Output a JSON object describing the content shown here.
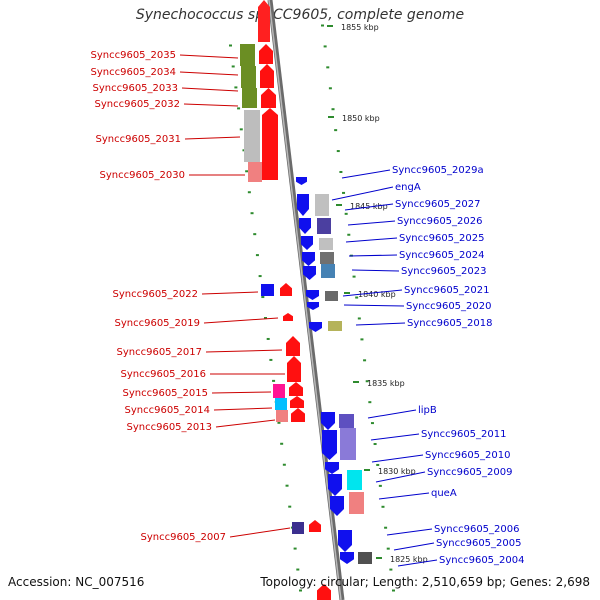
{
  "title": "Synechococcus sp. CC9605, complete genome",
  "accession_label": "Accession: NC_007516",
  "summary": "Topology: circular; Length: 2,510,659 bp; Genes: 2,698",
  "colors": {
    "forward_label": "#cc0000",
    "reverse_label": "#0000cc",
    "backbone": "#888888",
    "ticks": "#2e8b2e"
  },
  "scale_labels": [
    "1855 kbp",
    "1850 kbp",
    "1845 kbp",
    "1840 kbp",
    "1835 kbp",
    "1830 kbp",
    "1825 kbp"
  ],
  "forward_genes": [
    "Syncc9605_2035",
    "Syncc9605_2034",
    "Syncc9605_2033",
    "Syncc9605_2032",
    "Syncc9605_2031",
    "Syncc9605_2030",
    "Syncc9605_2022",
    "Syncc9605_2019",
    "Syncc9605_2017",
    "Syncc9605_2016",
    "Syncc9605_2015",
    "Syncc9605_2014",
    "Syncc9605_2013",
    "Syncc9605_2007"
  ],
  "reverse_genes": [
    "Syncc9605_2029a",
    "engA",
    "Syncc9605_2027",
    "Syncc9605_2026",
    "Syncc9605_2025",
    "Syncc9605_2024",
    "Syncc9605_2023",
    "Syncc9605_2021",
    "Syncc9605_2020",
    "Syncc9605_2018",
    "lipB",
    "Syncc9605_2011",
    "Syncc9605_2010",
    "Syncc9605_2009",
    "queA",
    "Syncc9605_2006",
    "Syncc9605_2005",
    "Syncc9605_2004"
  ]
}
